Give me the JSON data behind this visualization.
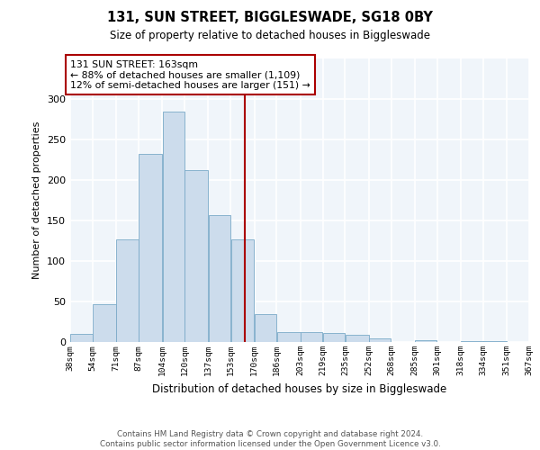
{
  "title": "131, SUN STREET, BIGGLESWADE, SG18 0BY",
  "subtitle": "Size of property relative to detached houses in Biggleswade",
  "xlabel": "Distribution of detached houses by size in Biggleswade",
  "ylabel": "Number of detached properties",
  "bin_edges": [
    38,
    54,
    71,
    87,
    104,
    120,
    137,
    153,
    170,
    186,
    203,
    219,
    235,
    252,
    268,
    285,
    301,
    318,
    334,
    351,
    367
  ],
  "bar_heights": [
    10,
    47,
    127,
    232,
    284,
    212,
    157,
    127,
    35,
    12,
    12,
    11,
    9,
    5,
    0,
    2,
    0,
    1,
    1,
    0
  ],
  "bar_color": "#ccdcec",
  "bar_edgecolor": "#7aaac8",
  "vline_x": 163,
  "vline_color": "#aa0000",
  "annotation_line1": "131 SUN STREET: 163sqm",
  "annotation_line2": "← 88% of detached houses are smaller (1,109)",
  "annotation_line3": "12% of semi-detached houses are larger (151) →",
  "ylim": [
    0,
    350
  ],
  "yticks": [
    0,
    50,
    100,
    150,
    200,
    250,
    300
  ],
  "plot_bg": "#f0f5fa",
  "outer_bg": "#ffffff",
  "grid_color": "#e0e8f0",
  "footer_text": "Contains HM Land Registry data © Crown copyright and database right 2024.\nContains public sector information licensed under the Open Government Licence v3.0.",
  "tick_labels": [
    "38sqm",
    "54sqm",
    "71sqm",
    "87sqm",
    "104sqm",
    "120sqm",
    "137sqm",
    "153sqm",
    "170sqm",
    "186sqm",
    "203sqm",
    "219sqm",
    "235sqm",
    "252sqm",
    "268sqm",
    "285sqm",
    "301sqm",
    "318sqm",
    "334sqm",
    "351sqm",
    "367sqm"
  ]
}
